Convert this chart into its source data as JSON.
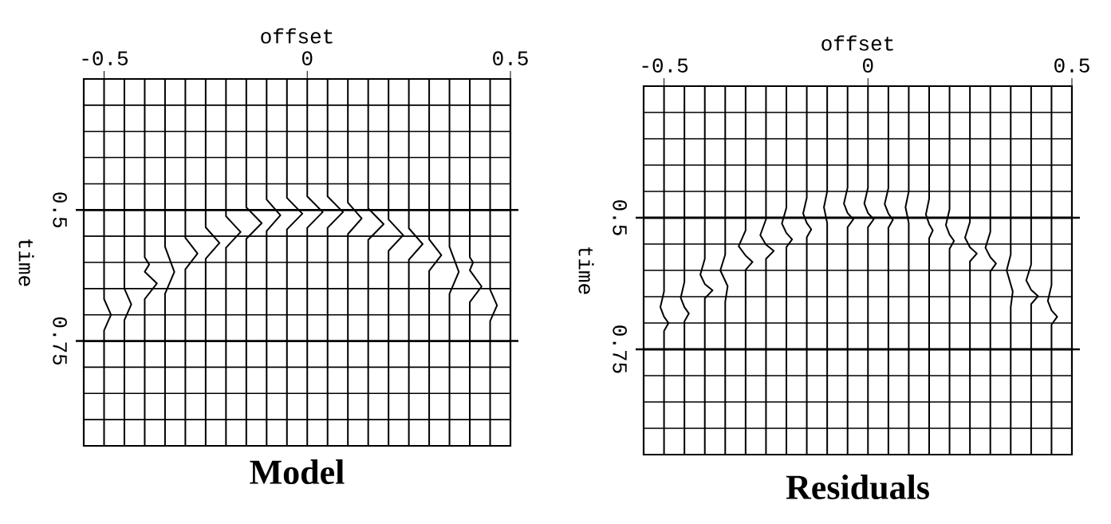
{
  "chart_data": [
    {
      "type": "line",
      "title": "Model",
      "xlabel": "offset",
      "ylabel": "time",
      "xlim": [
        -0.55,
        0.5
      ],
      "ylim": [
        0.95,
        0.25
      ],
      "xticks": [
        -0.5,
        0,
        0.5
      ],
      "yticks": [
        {
          "value": 0.3,
          "label": null
        },
        {
          "value": 0.35,
          "label": null
        },
        {
          "value": 0.4,
          "label": null
        },
        {
          "value": 0.45,
          "label": null
        },
        {
          "value": 0.5,
          "label": "0.5"
        },
        {
          "value": 0.55,
          "label": null
        },
        {
          "value": 0.6,
          "label": null
        },
        {
          "value": 0.65,
          "label": null
        },
        {
          "value": 0.7,
          "label": null
        },
        {
          "value": 0.75,
          "label": "0.75"
        },
        {
          "value": 0.8,
          "label": null
        },
        {
          "value": 0.85,
          "label": null
        },
        {
          "value": 0.9,
          "label": null
        }
      ],
      "grid": "y",
      "marker": "none",
      "series": [
        {
          "color": "#000000",
          "x": [
            -0.5,
            -0.5,
            -0.483,
            -0.5,
            -0.5
          ],
          "values": [
            0.25,
            0.67,
            0.7,
            0.73,
            0.95
          ]
        },
        {
          "color": "#000000",
          "x": [
            -0.45,
            -0.45,
            -0.433,
            -0.45,
            -0.45
          ],
          "values": [
            0.25,
            0.65,
            0.68,
            0.71,
            0.95
          ]
        },
        {
          "color": "#000000",
          "x": [
            -0.4,
            -0.4,
            -0.389,
            -0.4,
            -0.37,
            -0.4,
            -0.4
          ],
          "values": [
            0.25,
            0.59,
            0.604,
            0.618,
            0.64,
            0.67,
            0.95
          ]
        },
        {
          "color": "#000000",
          "x": [
            -0.35,
            -0.35,
            -0.327,
            -0.35,
            -0.35
          ],
          "values": [
            0.25,
            0.57,
            0.618,
            0.66,
            0.95
          ]
        },
        {
          "color": "#000000",
          "x": [
            -0.3,
            -0.3,
            -0.27,
            -0.3,
            -0.3
          ],
          "values": [
            0.25,
            0.553,
            0.583,
            0.613,
            0.95
          ]
        },
        {
          "color": "#000000",
          "x": [
            -0.25,
            -0.25,
            -0.216,
            -0.25,
            -0.25
          ],
          "values": [
            0.25,
            0.533,
            0.563,
            0.593,
            0.95
          ]
        },
        {
          "color": "#000000",
          "x": [
            -0.2,
            -0.2,
            -0.164,
            -0.2,
            -0.2
          ],
          "values": [
            0.25,
            0.512,
            0.542,
            0.572,
            0.95
          ]
        },
        {
          "color": "#000000",
          "x": [
            -0.15,
            -0.15,
            -0.112,
            -0.15,
            -0.15
          ],
          "values": [
            0.25,
            0.495,
            0.525,
            0.555,
            0.95
          ]
        },
        {
          "color": "#000000",
          "x": [
            -0.1,
            -0.1,
            -0.066,
            -0.1,
            -0.1
          ],
          "values": [
            0.25,
            0.48,
            0.51,
            0.54,
            0.95
          ]
        },
        {
          "color": "#000000",
          "x": [
            -0.05,
            -0.05,
            -0.012,
            -0.05,
            -0.05
          ],
          "values": [
            0.25,
            0.477,
            0.507,
            0.537,
            0.95
          ]
        },
        {
          "color": "#000000",
          "x": [
            0,
            0,
            0.038,
            0,
            0
          ],
          "values": [
            0.25,
            0.474,
            0.504,
            0.534,
            0.95
          ]
        },
        {
          "color": "#000000",
          "x": [
            0.05,
            0.05,
            0.088,
            0.05,
            0.05
          ],
          "values": [
            0.25,
            0.474,
            0.504,
            0.534,
            0.95
          ]
        },
        {
          "color": "#000000",
          "x": [
            0.1,
            0.1,
            0.134,
            0.1,
            0.1
          ],
          "values": [
            0.25,
            0.486,
            0.516,
            0.546,
            0.95
          ]
        },
        {
          "color": "#000000",
          "x": [
            0.15,
            0.15,
            0.188,
            0.15,
            0.15
          ],
          "values": [
            0.25,
            0.497,
            0.527,
            0.557,
            0.95
          ]
        },
        {
          "color": "#000000",
          "x": [
            0.2,
            0.2,
            0.236,
            0.2,
            0.2
          ],
          "values": [
            0.25,
            0.518,
            0.548,
            0.578,
            0.95
          ]
        },
        {
          "color": "#000000",
          "x": [
            0.25,
            0.25,
            0.284,
            0.25,
            0.25
          ],
          "values": [
            0.25,
            0.535,
            0.565,
            0.595,
            0.95
          ]
        },
        {
          "color": "#000000",
          "x": [
            0.3,
            0.3,
            0.33,
            0.3,
            0.3
          ],
          "values": [
            0.25,
            0.556,
            0.586,
            0.616,
            0.95
          ]
        },
        {
          "color": "#000000",
          "x": [
            0.35,
            0.35,
            0.373,
            0.35,
            0.35
          ],
          "values": [
            0.25,
            0.57,
            0.618,
            0.66,
            0.95
          ]
        },
        {
          "color": "#000000",
          "x": [
            0.4,
            0.4,
            0.408,
            0.4,
            0.429,
            0.4,
            0.4
          ],
          "values": [
            0.25,
            0.59,
            0.6,
            0.615,
            0.646,
            0.676,
            0.95
          ]
        },
        {
          "color": "#000000",
          "x": [
            0.45,
            0.45,
            0.467,
            0.45,
            0.45
          ],
          "values": [
            0.25,
            0.652,
            0.682,
            0.712,
            0.95
          ]
        }
      ]
    },
    {
      "type": "line",
      "title": "Residuals",
      "xlabel": "offset",
      "ylabel": "time",
      "xlim": [
        -0.55,
        0.5
      ],
      "ylim": [
        0.95,
        0.25
      ],
      "xticks": [
        -0.5,
        0,
        0.5
      ],
      "yticks": [
        {
          "value": 0.3,
          "label": null
        },
        {
          "value": 0.35,
          "label": null
        },
        {
          "value": 0.4,
          "label": null
        },
        {
          "value": 0.45,
          "label": null
        },
        {
          "value": 0.5,
          "label": "0.5"
        },
        {
          "value": 0.55,
          "label": null
        },
        {
          "value": 0.6,
          "label": null
        },
        {
          "value": 0.65,
          "label": null
        },
        {
          "value": 0.7,
          "label": null
        },
        {
          "value": 0.75,
          "label": "0.75"
        },
        {
          "value": 0.8,
          "label": null
        },
        {
          "value": 0.85,
          "label": null
        },
        {
          "value": 0.9,
          "label": null
        }
      ],
      "grid": "y",
      "marker": "none",
      "series": [
        {
          "color": "#000000",
          "x": [
            -0.5,
            -0.5,
            -0.509,
            -0.5,
            -0.489,
            -0.5,
            -0.5
          ],
          "values": [
            0.25,
            0.64,
            0.67,
            0.688,
            0.7,
            0.715,
            0.95
          ]
        },
        {
          "color": "#000000",
          "x": [
            -0.45,
            -0.45,
            -0.459,
            -0.45,
            -0.439,
            -0.45,
            -0.45
          ],
          "values": [
            0.25,
            0.622,
            0.652,
            0.67,
            0.682,
            0.697,
            0.95
          ]
        },
        {
          "color": "#000000",
          "x": [
            -0.4,
            -0.4,
            -0.411,
            -0.4,
            -0.381,
            -0.4,
            -0.4
          ],
          "values": [
            0.25,
            0.578,
            0.608,
            0.626,
            0.638,
            0.653,
            0.95
          ]
        },
        {
          "color": "#000000",
          "x": [
            -0.35,
            -0.35,
            -0.362,
            -0.344,
            -0.35,
            -0.35
          ],
          "values": [
            0.25,
            0.57,
            0.6,
            0.63,
            0.66,
            0.95
          ]
        },
        {
          "color": "#000000",
          "x": [
            -0.3,
            -0.3,
            -0.317,
            -0.3,
            -0.283,
            -0.3,
            -0.3
          ],
          "values": [
            0.25,
            0.524,
            0.554,
            0.572,
            0.584,
            0.599,
            0.95
          ]
        },
        {
          "color": "#000000",
          "x": [
            -0.25,
            -0.25,
            -0.264,
            -0.25,
            -0.231,
            -0.25,
            -0.25
          ],
          "values": [
            0.25,
            0.503,
            0.533,
            0.551,
            0.563,
            0.578,
            0.95
          ]
        },
        {
          "color": "#000000",
          "x": [
            -0.2,
            -0.2,
            -0.211,
            -0.2,
            -0.186,
            -0.2,
            -0.2
          ],
          "values": [
            0.25,
            0.481,
            0.511,
            0.529,
            0.541,
            0.556,
            0.95
          ]
        },
        {
          "color": "#000000",
          "x": [
            -0.15,
            -0.15,
            -0.159,
            -0.15,
            -0.139,
            -0.15,
            -0.15
          ],
          "values": [
            0.25,
            0.462,
            0.492,
            0.51,
            0.522,
            0.537,
            0.95
          ]
        },
        {
          "color": "#000000",
          "x": [
            -0.1,
            -0.1,
            -0.108,
            -0.1,
            -0.1
          ],
          "values": [
            0.25,
            0.45,
            0.48,
            0.51,
            0.95
          ]
        },
        {
          "color": "#000000",
          "x": [
            -0.05,
            -0.05,
            -0.059,
            -0.05,
            -0.036,
            -0.05,
            -0.05
          ],
          "values": [
            0.25,
            0.443,
            0.473,
            0.491,
            0.503,
            0.518,
            0.95
          ]
        },
        {
          "color": "#000000",
          "x": [
            0,
            0,
            -0.009,
            0,
            0.014,
            0,
            0
          ],
          "values": [
            0.25,
            0.443,
            0.473,
            0.491,
            0.503,
            0.518,
            0.95
          ]
        },
        {
          "color": "#000000",
          "x": [
            0.05,
            0.05,
            0.041,
            0.05,
            0.061,
            0.05,
            0.05
          ],
          "values": [
            0.25,
            0.444,
            0.474,
            0.492,
            0.504,
            0.519,
            0.95
          ]
        },
        {
          "color": "#000000",
          "x": [
            0.1,
            0.1,
            0.092,
            0.1,
            0.1
          ],
          "values": [
            0.25,
            0.45,
            0.48,
            0.51,
            0.95
          ]
        },
        {
          "color": "#000000",
          "x": [
            0.15,
            0.15,
            0.142,
            0.15,
            0.159,
            0.15,
            0.15
          ],
          "values": [
            0.25,
            0.464,
            0.494,
            0.512,
            0.524,
            0.539,
            0.95
          ]
        },
        {
          "color": "#000000",
          "x": [
            0.2,
            0.2,
            0.191,
            0.2,
            0.211,
            0.2,
            0.2
          ],
          "values": [
            0.25,
            0.484,
            0.514,
            0.532,
            0.544,
            0.559,
            0.95
          ]
        },
        {
          "color": "#000000",
          "x": [
            0.25,
            0.25,
            0.238,
            0.25,
            0.267,
            0.25,
            0.25
          ],
          "values": [
            0.25,
            0.508,
            0.538,
            0.556,
            0.568,
            0.583,
            0.95
          ]
        },
        {
          "color": "#000000",
          "x": [
            0.3,
            0.3,
            0.288,
            0.3,
            0.314,
            0.3,
            0.3
          ],
          "values": [
            0.25,
            0.527,
            0.557,
            0.575,
            0.587,
            0.602,
            0.95
          ]
        },
        {
          "color": "#000000",
          "x": [
            0.35,
            0.35,
            0.34,
            0.355,
            0.35,
            0.35
          ],
          "values": [
            0.25,
            0.57,
            0.6,
            0.64,
            0.67,
            0.95
          ]
        },
        {
          "color": "#000000",
          "x": [
            0.4,
            0.4,
            0.388,
            0.4,
            0.417,
            0.4,
            0.4
          ],
          "values": [
            0.25,
            0.589,
            0.619,
            0.637,
            0.649,
            0.664,
            0.95
          ]
        },
        {
          "color": "#000000",
          "x": [
            0.45,
            0.45,
            0.441,
            0.45,
            0.464,
            0.45,
            0.45
          ],
          "values": [
            0.25,
            0.628,
            0.658,
            0.676,
            0.688,
            0.703,
            0.95
          ]
        }
      ]
    }
  ]
}
